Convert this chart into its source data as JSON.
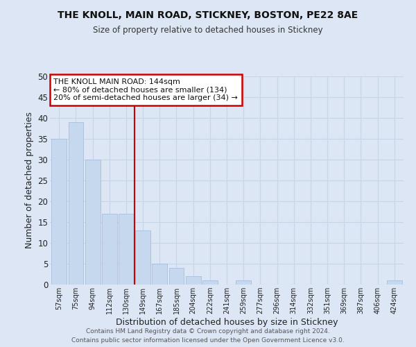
{
  "title": "THE KNOLL, MAIN ROAD, STICKNEY, BOSTON, PE22 8AE",
  "subtitle": "Size of property relative to detached houses in Stickney",
  "xlabel": "Distribution of detached houses by size in Stickney",
  "ylabel": "Number of detached properties",
  "bar_labels": [
    "57sqm",
    "75sqm",
    "94sqm",
    "112sqm",
    "130sqm",
    "149sqm",
    "167sqm",
    "185sqm",
    "204sqm",
    "222sqm",
    "241sqm",
    "259sqm",
    "277sqm",
    "296sqm",
    "314sqm",
    "332sqm",
    "351sqm",
    "369sqm",
    "387sqm",
    "406sqm",
    "424sqm"
  ],
  "bar_values": [
    35,
    39,
    30,
    17,
    17,
    13,
    5,
    4,
    2,
    1,
    0,
    1,
    0,
    0,
    0,
    0,
    0,
    0,
    0,
    0,
    1
  ],
  "bar_color": "#c5d8ee",
  "bar_edge_color": "#a0b8d8",
  "grid_color": "#c8d4e8",
  "background_color": "#dce6f5",
  "plot_bg_color": "#dce6f5",
  "vline_color": "#cc0000",
  "ylim": [
    0,
    50
  ],
  "yticks": [
    0,
    5,
    10,
    15,
    20,
    25,
    30,
    35,
    40,
    45,
    50
  ],
  "annotation_title": "THE KNOLL MAIN ROAD: 144sqm",
  "annotation_line1": "← 80% of detached houses are smaller (134)",
  "annotation_line2": "20% of semi-detached houses are larger (34) →",
  "annotation_box_color": "#ffffff",
  "annotation_box_edge": "#cc0000",
  "footer1": "Contains HM Land Registry data © Crown copyright and database right 2024.",
  "footer2": "Contains public sector information licensed under the Open Government Licence v3.0."
}
